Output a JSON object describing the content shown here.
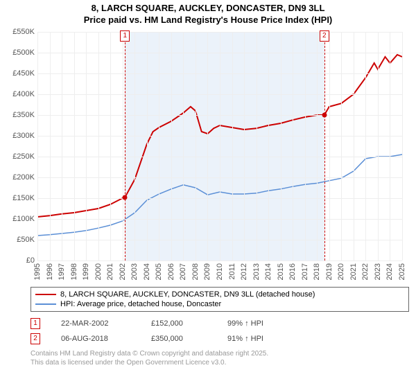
{
  "title_line1": "8, LARCH SQUARE, AUCKLEY, DONCASTER, DN9 3LL",
  "title_line2": "Price paid vs. HM Land Registry's House Price Index (HPI)",
  "chart": {
    "type": "line",
    "background_color": "#ffffff",
    "shaded_band_color": "#ebf2fa",
    "grid_color": "#eeeeee",
    "axis_text_color": "#555555",
    "y_axis": {
      "min": 0,
      "max": 550000,
      "tick_step": 50000,
      "labels": [
        "£0",
        "£50K",
        "£100K",
        "£150K",
        "£200K",
        "£250K",
        "£300K",
        "£350K",
        "£400K",
        "£450K",
        "£500K",
        "£550K"
      ]
    },
    "x_axis": {
      "min": 1995,
      "max": 2025,
      "tick_step": 1,
      "labels": [
        "1995",
        "1996",
        "1997",
        "1998",
        "1999",
        "2000",
        "2001",
        "2002",
        "2003",
        "2004",
        "2005",
        "2006",
        "2007",
        "2008",
        "2009",
        "2010",
        "2011",
        "2012",
        "2013",
        "2014",
        "2015",
        "2016",
        "2017",
        "2018",
        "2019",
        "2020",
        "2021",
        "2022",
        "2023",
        "2024",
        "2025"
      ]
    },
    "shaded_band": {
      "x_start": 2002.2,
      "x_end": 2018.6
    },
    "markers": [
      {
        "n": "1",
        "x": 2002.2,
        "y": 152000,
        "dot_color": "#cc0000"
      },
      {
        "n": "2",
        "x": 2018.6,
        "y": 350000,
        "dot_color": "#cc0000"
      }
    ],
    "series": [
      {
        "name": "8, LARCH SQUARE, AUCKLEY, DONCASTER, DN9 3LL (detached house)",
        "color": "#cc0000",
        "line_width": 2,
        "points": [
          [
            1995,
            105000
          ],
          [
            1996,
            108000
          ],
          [
            1997,
            112000
          ],
          [
            1998,
            115000
          ],
          [
            1999,
            120000
          ],
          [
            2000,
            125000
          ],
          [
            2001,
            135000
          ],
          [
            2002,
            150000
          ],
          [
            2002.2,
            152000
          ],
          [
            2003,
            195000
          ],
          [
            2004,
            280000
          ],
          [
            2004.5,
            310000
          ],
          [
            2005,
            320000
          ],
          [
            2006,
            335000
          ],
          [
            2007,
            355000
          ],
          [
            2007.6,
            370000
          ],
          [
            2008,
            360000
          ],
          [
            2008.5,
            310000
          ],
          [
            2009,
            305000
          ],
          [
            2009.5,
            318000
          ],
          [
            2010,
            325000
          ],
          [
            2011,
            320000
          ],
          [
            2012,
            315000
          ],
          [
            2013,
            318000
          ],
          [
            2014,
            325000
          ],
          [
            2015,
            330000
          ],
          [
            2016,
            338000
          ],
          [
            2017,
            345000
          ],
          [
            2018,
            350000
          ],
          [
            2018.6,
            350000
          ],
          [
            2019,
            370000
          ],
          [
            2020,
            378000
          ],
          [
            2021,
            400000
          ],
          [
            2022,
            440000
          ],
          [
            2022.7,
            475000
          ],
          [
            2023,
            460000
          ],
          [
            2023.6,
            490000
          ],
          [
            2024,
            475000
          ],
          [
            2024.6,
            495000
          ],
          [
            2025,
            490000
          ]
        ]
      },
      {
        "name": "HPI: Average price, detached house, Doncaster",
        "color": "#5b8fd6",
        "line_width": 1.5,
        "points": [
          [
            1995,
            60000
          ],
          [
            1996,
            62000
          ],
          [
            1997,
            65000
          ],
          [
            1998,
            68000
          ],
          [
            1999,
            72000
          ],
          [
            2000,
            78000
          ],
          [
            2001,
            85000
          ],
          [
            2002,
            95000
          ],
          [
            2003,
            115000
          ],
          [
            2004,
            145000
          ],
          [
            2005,
            160000
          ],
          [
            2006,
            172000
          ],
          [
            2007,
            182000
          ],
          [
            2008,
            175000
          ],
          [
            2009,
            158000
          ],
          [
            2010,
            165000
          ],
          [
            2011,
            160000
          ],
          [
            2012,
            160000
          ],
          [
            2013,
            162000
          ],
          [
            2014,
            168000
          ],
          [
            2015,
            172000
          ],
          [
            2016,
            178000
          ],
          [
            2017,
            183000
          ],
          [
            2018,
            186000
          ],
          [
            2019,
            192000
          ],
          [
            2020,
            198000
          ],
          [
            2021,
            215000
          ],
          [
            2022,
            245000
          ],
          [
            2023,
            250000
          ],
          [
            2024,
            250000
          ],
          [
            2025,
            255000
          ]
        ]
      }
    ]
  },
  "legend": {
    "items": [
      {
        "color": "#cc0000",
        "width": 2,
        "label": "8, LARCH SQUARE, AUCKLEY, DONCASTER, DN9 3LL (detached house)"
      },
      {
        "color": "#5b8fd6",
        "width": 1.5,
        "label": "HPI: Average price, detached house, Doncaster"
      }
    ]
  },
  "sales": [
    {
      "n": "1",
      "date": "22-MAR-2002",
      "price": "£152,000",
      "hpi": "99% ↑ HPI"
    },
    {
      "n": "2",
      "date": "06-AUG-2018",
      "price": "£350,000",
      "hpi": "91% ↑ HPI"
    }
  ],
  "attribution_line1": "Contains HM Land Registry data © Crown copyright and database right 2025.",
  "attribution_line2": "This data is licensed under the Open Government Licence v3.0."
}
